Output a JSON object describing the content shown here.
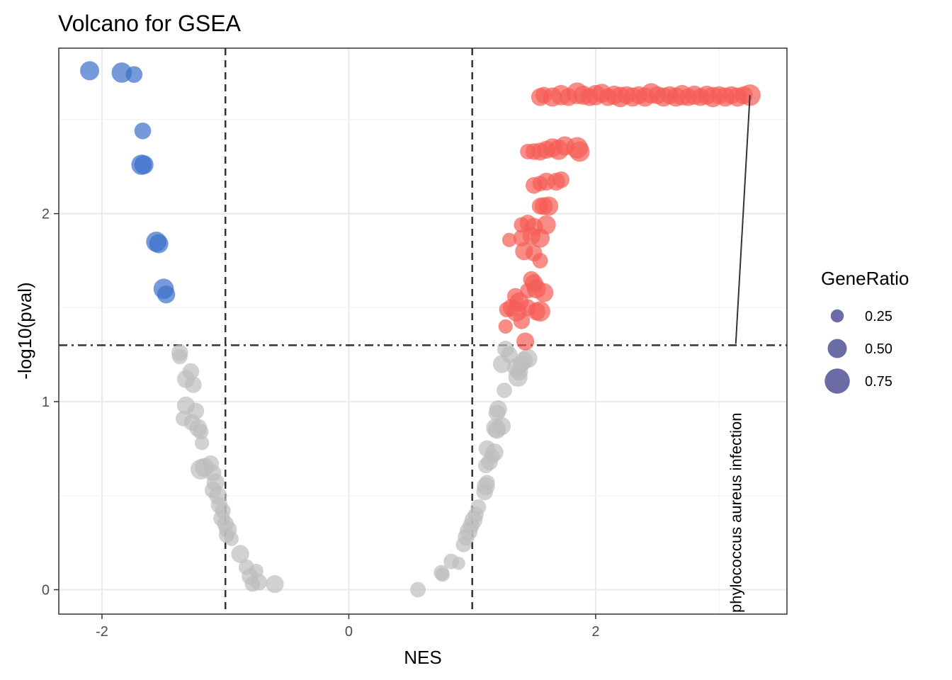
{
  "chart_data": {
    "type": "scatter",
    "title": "Volcano for GSEA",
    "xlabel": "NES",
    "ylabel": "-log10(pval)",
    "xlim": [
      -2.35,
      3.55
    ],
    "ylim": [
      -0.13,
      2.88
    ],
    "xticks": [
      -2,
      0,
      2
    ],
    "yticks": [
      0,
      1,
      2
    ],
    "grid": true,
    "thresholds": {
      "nes": [
        -1,
        1
      ],
      "neglog10_p": 1.3
    },
    "colors": {
      "down": "#3a6fc9",
      "up": "#f55c55",
      "ns": "#bebebe",
      "legend": "#5b5b9b"
    },
    "legend": {
      "title": "GeneRatio",
      "position": "right",
      "entries": [
        {
          "label": "0.25",
          "value": 0.25
        },
        {
          "label": "0.50",
          "value": 0.5
        },
        {
          "label": "0.75",
          "value": 0.75
        }
      ]
    },
    "annotation": {
      "text": "phylococcus aureus infection",
      "x": 3.25,
      "y": 2.63
    },
    "series": [
      {
        "group": "down",
        "points": [
          [
            -2.1,
            2.76,
            0.5
          ],
          [
            -1.84,
            2.75,
            0.55
          ],
          [
            -1.74,
            2.74,
            0.4
          ],
          [
            -1.67,
            2.44,
            0.4
          ],
          [
            -1.68,
            2.26,
            0.55
          ],
          [
            -1.66,
            2.26,
            0.5
          ],
          [
            -1.56,
            1.85,
            0.55
          ],
          [
            -1.54,
            1.84,
            0.5
          ],
          [
            -1.5,
            1.6,
            0.55
          ],
          [
            -1.48,
            1.57,
            0.45
          ]
        ]
      },
      {
        "group": "up",
        "points": [
          [
            1.55,
            2.62,
            0.45
          ],
          [
            1.58,
            2.63,
            0.4
          ],
          [
            1.65,
            2.62,
            0.5
          ],
          [
            1.72,
            2.63,
            0.55
          ],
          [
            1.78,
            2.62,
            0.45
          ],
          [
            1.85,
            2.64,
            0.6
          ],
          [
            1.9,
            2.63,
            0.5
          ],
          [
            1.95,
            2.62,
            0.45
          ],
          [
            2.0,
            2.63,
            0.55
          ],
          [
            2.05,
            2.64,
            0.5
          ],
          [
            2.1,
            2.62,
            0.45
          ],
          [
            2.15,
            2.63,
            0.5
          ],
          [
            2.2,
            2.62,
            0.55
          ],
          [
            2.25,
            2.63,
            0.45
          ],
          [
            2.3,
            2.62,
            0.5
          ],
          [
            2.35,
            2.63,
            0.45
          ],
          [
            2.4,
            2.62,
            0.5
          ],
          [
            2.45,
            2.64,
            0.55
          ],
          [
            2.5,
            2.63,
            0.45
          ],
          [
            2.55,
            2.62,
            0.5
          ],
          [
            2.6,
            2.63,
            0.45
          ],
          [
            2.65,
            2.62,
            0.5
          ],
          [
            2.7,
            2.63,
            0.55
          ],
          [
            2.75,
            2.62,
            0.45
          ],
          [
            2.8,
            2.63,
            0.5
          ],
          [
            2.85,
            2.62,
            0.45
          ],
          [
            2.9,
            2.63,
            0.5
          ],
          [
            2.95,
            2.62,
            0.55
          ],
          [
            3.0,
            2.63,
            0.45
          ],
          [
            3.05,
            2.62,
            0.5
          ],
          [
            3.1,
            2.63,
            0.45
          ],
          [
            3.15,
            2.62,
            0.5
          ],
          [
            3.2,
            2.63,
            0.45
          ],
          [
            3.25,
            2.63,
            0.6
          ],
          [
            1.45,
            2.33,
            0.35
          ],
          [
            1.5,
            2.33,
            0.4
          ],
          [
            1.55,
            2.33,
            0.45
          ],
          [
            1.6,
            2.34,
            0.45
          ],
          [
            1.65,
            2.35,
            0.5
          ],
          [
            1.7,
            2.34,
            0.55
          ],
          [
            1.75,
            2.36,
            0.5
          ],
          [
            1.85,
            2.35,
            0.6
          ],
          [
            1.87,
            2.33,
            0.55
          ],
          [
            1.5,
            2.15,
            0.4
          ],
          [
            1.55,
            2.16,
            0.35
          ],
          [
            1.6,
            2.17,
            0.45
          ],
          [
            1.68,
            2.17,
            0.45
          ],
          [
            1.72,
            2.18,
            0.4
          ],
          [
            1.55,
            2.04,
            0.4
          ],
          [
            1.58,
            2.04,
            0.45
          ],
          [
            1.62,
            2.04,
            0.5
          ],
          [
            1.4,
            1.94,
            0.35
          ],
          [
            1.45,
            1.95,
            0.4
          ],
          [
            1.5,
            1.93,
            0.45
          ],
          [
            1.6,
            1.94,
            0.5
          ],
          [
            1.3,
            1.86,
            0.3
          ],
          [
            1.4,
            1.87,
            0.4
          ],
          [
            1.48,
            1.88,
            0.45
          ],
          [
            1.55,
            1.87,
            0.5
          ],
          [
            1.42,
            1.8,
            0.45
          ],
          [
            1.5,
            1.79,
            0.4
          ],
          [
            1.55,
            1.75,
            0.35
          ],
          [
            1.48,
            1.65,
            0.4
          ],
          [
            1.5,
            1.63,
            0.45
          ],
          [
            1.52,
            1.6,
            0.5
          ],
          [
            1.45,
            1.59,
            0.35
          ],
          [
            1.58,
            1.58,
            0.5
          ],
          [
            1.35,
            1.56,
            0.4
          ],
          [
            1.38,
            1.53,
            0.5
          ],
          [
            1.32,
            1.5,
            0.45
          ],
          [
            1.28,
            1.49,
            0.35
          ],
          [
            1.36,
            1.48,
            0.55
          ],
          [
            1.45,
            1.5,
            0.4
          ],
          [
            1.52,
            1.48,
            0.45
          ],
          [
            1.55,
            1.48,
            0.55
          ],
          [
            1.4,
            1.43,
            0.4
          ],
          [
            1.27,
            1.4,
            0.3
          ],
          [
            1.43,
            1.32,
            0.45
          ]
        ]
      },
      {
        "group": "ns",
        "points": [
          [
            -1.37,
            1.26,
            0.4
          ],
          [
            -1.37,
            1.24,
            0.35
          ],
          [
            -1.28,
            1.16,
            0.4
          ],
          [
            -1.32,
            1.12,
            0.45
          ],
          [
            -1.26,
            1.09,
            0.4
          ],
          [
            -1.32,
            0.98,
            0.45
          ],
          [
            -1.24,
            0.95,
            0.4
          ],
          [
            -1.34,
            0.91,
            0.35
          ],
          [
            -1.27,
            0.89,
            0.4
          ],
          [
            -1.22,
            0.86,
            0.45
          ],
          [
            -1.2,
            0.84,
            0.35
          ],
          [
            -1.19,
            0.78,
            0.3
          ],
          [
            -1.12,
            0.67,
            0.4
          ],
          [
            -1.17,
            0.65,
            0.5
          ],
          [
            -1.2,
            0.64,
            0.55
          ],
          [
            -1.1,
            0.62,
            0.4
          ],
          [
            -1.08,
            0.57,
            0.45
          ],
          [
            -1.1,
            0.53,
            0.4
          ],
          [
            -1.06,
            0.5,
            0.45
          ],
          [
            -1.05,
            0.45,
            0.4
          ],
          [
            -1.02,
            0.42,
            0.35
          ],
          [
            -1.03,
            0.38,
            0.4
          ],
          [
            -1.0,
            0.35,
            0.4
          ],
          [
            -0.98,
            0.32,
            0.45
          ],
          [
            -0.99,
            0.29,
            0.35
          ],
          [
            -0.95,
            0.27,
            0.3
          ],
          [
            -0.88,
            0.19,
            0.45
          ],
          [
            -0.83,
            0.12,
            0.35
          ],
          [
            -0.75,
            0.1,
            0.3
          ],
          [
            -0.8,
            0.07,
            0.4
          ],
          [
            -0.73,
            0.04,
            0.4
          ],
          [
            -0.78,
            0.03,
            0.35
          ],
          [
            -0.6,
            0.03,
            0.45
          ],
          [
            0.56,
            0.0,
            0.35
          ],
          [
            0.75,
            0.09,
            0.35
          ],
          [
            0.76,
            0.08,
            0.3
          ],
          [
            0.83,
            0.15,
            0.35
          ],
          [
            0.89,
            0.14,
            0.25
          ],
          [
            0.93,
            0.24,
            0.35
          ],
          [
            0.95,
            0.28,
            0.4
          ],
          [
            0.97,
            0.31,
            0.45
          ],
          [
            0.99,
            0.34,
            0.4
          ],
          [
            1.01,
            0.37,
            0.45
          ],
          [
            1.03,
            0.4,
            0.35
          ],
          [
            1.05,
            0.44,
            0.35
          ],
          [
            1.1,
            0.52,
            0.4
          ],
          [
            1.11,
            0.55,
            0.45
          ],
          [
            1.12,
            0.57,
            0.35
          ],
          [
            1.11,
            0.66,
            0.35
          ],
          [
            1.14,
            0.68,
            0.4
          ],
          [
            1.16,
            0.71,
            0.35
          ],
          [
            1.12,
            0.75,
            0.4
          ],
          [
            1.18,
            0.73,
            0.45
          ],
          [
            1.19,
            0.86,
            0.5
          ],
          [
            1.2,
            0.85,
            0.45
          ],
          [
            1.24,
            0.87,
            0.45
          ],
          [
            1.2,
            0.94,
            0.4
          ],
          [
            1.21,
            0.96,
            0.45
          ],
          [
            1.26,
            1.06,
            0.35
          ],
          [
            1.37,
            1.13,
            0.5
          ],
          [
            1.38,
            1.16,
            0.45
          ],
          [
            1.36,
            1.18,
            0.5
          ],
          [
            1.4,
            1.2,
            0.4
          ],
          [
            1.42,
            1.22,
            0.45
          ],
          [
            1.45,
            1.23,
            0.5
          ],
          [
            1.24,
            1.2,
            0.45
          ],
          [
            1.3,
            1.25,
            0.4
          ],
          [
            1.27,
            1.28,
            0.4
          ]
        ]
      }
    ]
  }
}
